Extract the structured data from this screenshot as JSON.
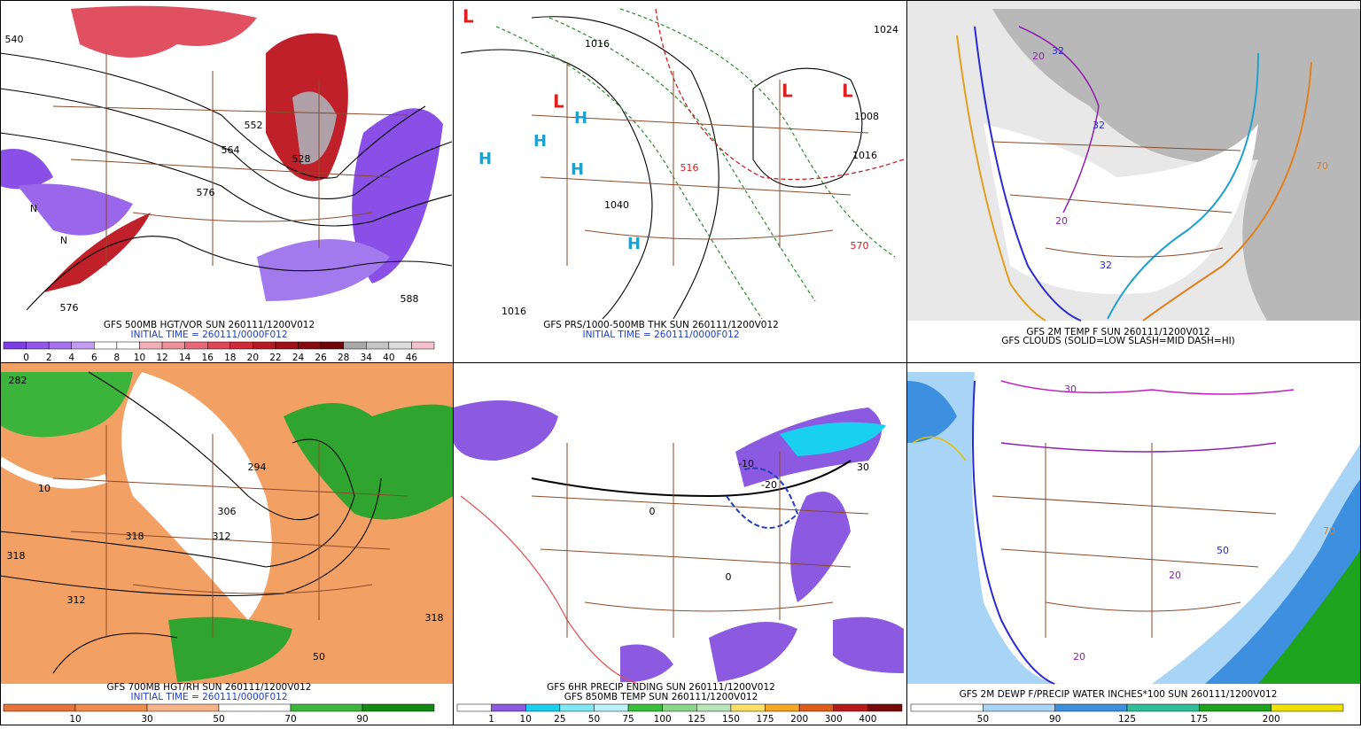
{
  "panels": [
    {
      "caption": [
        "GFS 500MB HGT/VOR SUN 260111/1200V012",
        "INITIAL TIME = 260111/0000F012"
      ],
      "map_labels": [
        "540",
        "552",
        "564",
        "576",
        "528",
        "576",
        "588",
        "N",
        "N"
      ],
      "colorbar": {
        "colors": [
          "#7d3fe3",
          "#9257ea",
          "#a671ee",
          "#c29bf3",
          "#ffffff",
          "#ffffff",
          "#f4b0b8",
          "#ef8f9a",
          "#e86a7a",
          "#df4656",
          "#d02a38",
          "#b81a25",
          "#9e0f17",
          "#870a10",
          "#6e0509",
          "#a8a8a8",
          "#c4c4c4",
          "#dcdcdc",
          "#f4c0d0"
        ],
        "labels": [
          "0",
          "2",
          "4",
          "6",
          "8",
          "10",
          "12",
          "14",
          "16",
          "18",
          "20",
          "22",
          "24",
          "26",
          "28",
          "34",
          "40",
          "46"
        ]
      }
    },
    {
      "caption": [
        "GFS PRS/1000-500MB THK SUN 260111/1200V012",
        "INITIAL TIME = 260111/0000F012"
      ],
      "map_labels": [
        "L",
        "L",
        "L",
        "L",
        "H",
        "H",
        "H",
        "H",
        "H",
        "1016",
        "1008",
        "1024",
        "1016",
        "1040",
        "1016",
        "516",
        "570"
      ]
    },
    {
      "caption": [
        "GFS 2M TEMP F SUN 260111/1200V012",
        "GFS CLOUDS (SOLID=LOW SLASH=MID DASH=HI)"
      ],
      "map_labels": [
        "20",
        "32",
        "32",
        "20",
        "32",
        "70"
      ]
    },
    {
      "caption": [
        "GFS 700MB HGT/RH SUN 260111/1200V012",
        "INITIAL TIME = 260111/0000F012"
      ],
      "map_labels": [
        "282",
        "294",
        "306",
        "318",
        "312",
        "318",
        "312",
        "318",
        "50",
        "10"
      ],
      "colorbar": {
        "colors": [
          "#e8733a",
          "#f08c4e",
          "#f8b488",
          "#ffffff",
          "#3cb83c",
          "#138a13"
        ],
        "labels": [
          "10",
          "30",
          "50",
          "70",
          "90"
        ]
      }
    },
    {
      "caption": [
        "GFS 6HR PRECIP ENDING SUN 260111/1200V012",
        "GFS 850MB TEMP SUN 260111/1200V012"
      ],
      "map_labels": [
        "0",
        "0",
        "-10",
        "-20",
        "30"
      ],
      "colorbar": {
        "colors": [
          "#ffffff",
          "#8c5ae0",
          "#1ad0f0",
          "#7fe8f5",
          "#b9f2f8",
          "#3abf3a",
          "#8ad68a",
          "#b8e6b8",
          "#ffe066",
          "#f5a623",
          "#e05c1a",
          "#b81a1a",
          "#7a0a0a"
        ],
        "labels": [
          "1",
          "10",
          "25",
          "50",
          "75",
          "100",
          "125",
          "150",
          "175",
          "200",
          "300",
          "400"
        ]
      }
    },
    {
      "caption": [
        "GFS 2M DEWP F/PRECIP WATER INCHES*100 SUN 260111/1200V012"
      ],
      "map_labels": [
        "20",
        "30",
        "50",
        "20",
        "70"
      ],
      "colorbar": {
        "colors": [
          "#ffffff",
          "#a8d4f5",
          "#3d8fe0",
          "#2fbf9a",
          "#1ea31e",
          "#f0e000"
        ],
        "labels": [
          "50",
          "90",
          "125",
          "175",
          "200"
        ]
      }
    }
  ]
}
